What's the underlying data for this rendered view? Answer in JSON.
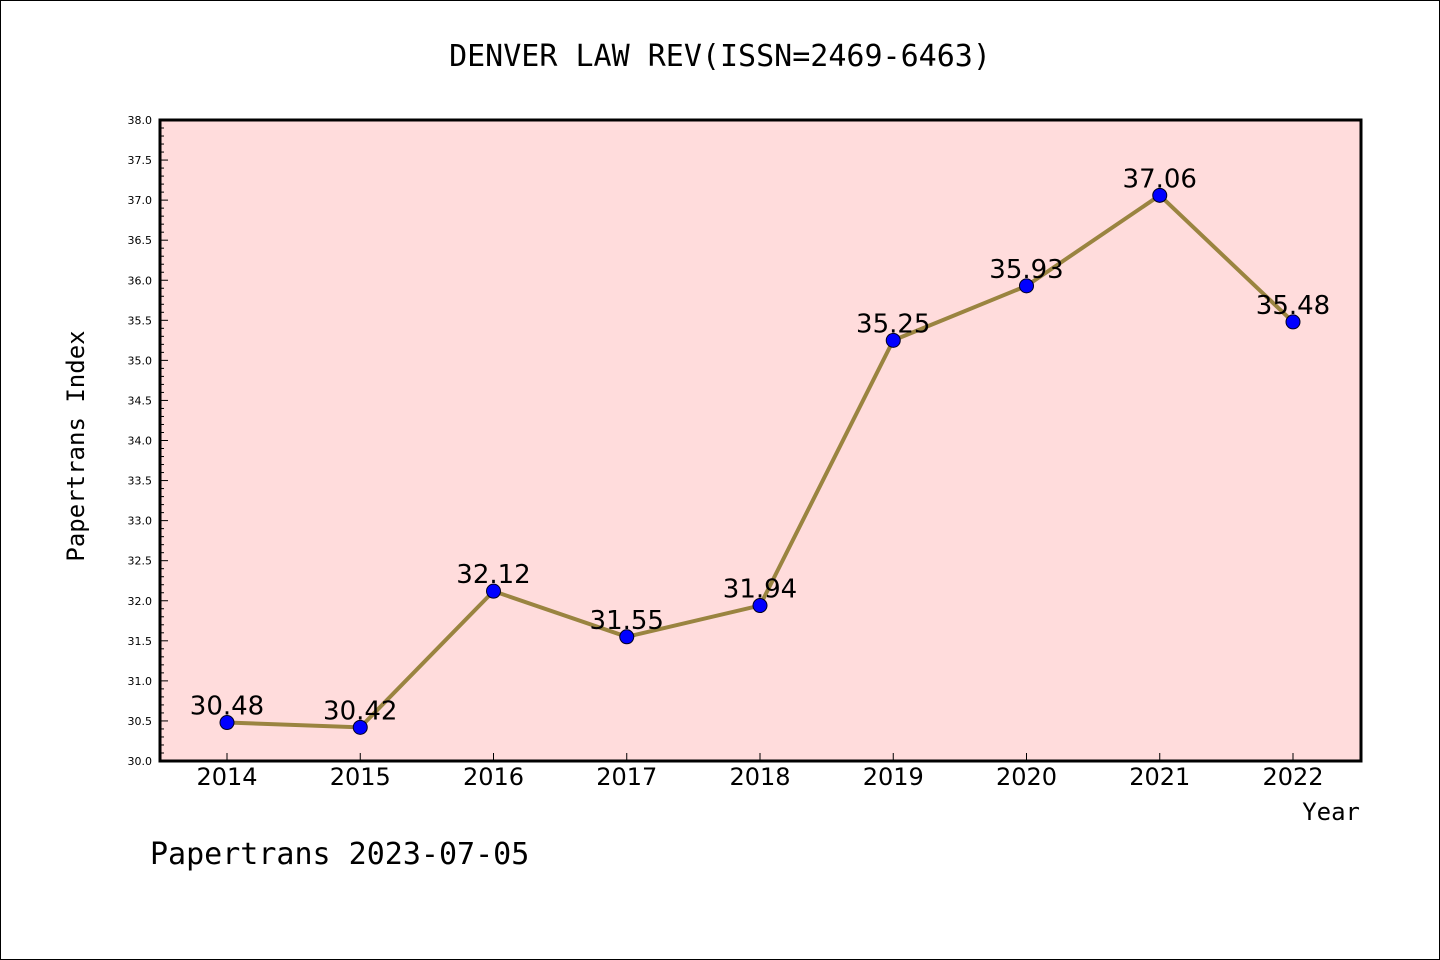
{
  "chart_data": {
    "type": "line",
    "title": "DENVER LAW REV(ISSN=2469-6463)",
    "xlabel": "Year",
    "ylabel": "Papertrans Index",
    "categories": [
      "2014",
      "2015",
      "2016",
      "2017",
      "2018",
      "2019",
      "2020",
      "2021",
      "2022"
    ],
    "values": [
      30.48,
      30.42,
      32.12,
      31.55,
      31.94,
      35.25,
      35.93,
      37.06,
      35.48
    ],
    "data_labels": [
      "30.48",
      "30.42",
      "32.12",
      "31.55",
      "31.94",
      "35.25",
      "35.93",
      "37.06",
      "35.48"
    ],
    "ylim": [
      30.0,
      38.0
    ],
    "yticks": [
      "30.0",
      "30.5",
      "31.0",
      "31.5",
      "32.0",
      "32.5",
      "33.0",
      "33.5",
      "34.0",
      "34.5",
      "35.0",
      "35.5",
      "36.0",
      "36.5",
      "37.0",
      "37.5",
      "38.0"
    ],
    "grid": false,
    "legend": "none",
    "colors": {
      "plot_background": "#ffdcdc",
      "line": "#9a8440",
      "marker": "#0000ff"
    }
  },
  "footer": "Papertrans 2023-07-05"
}
